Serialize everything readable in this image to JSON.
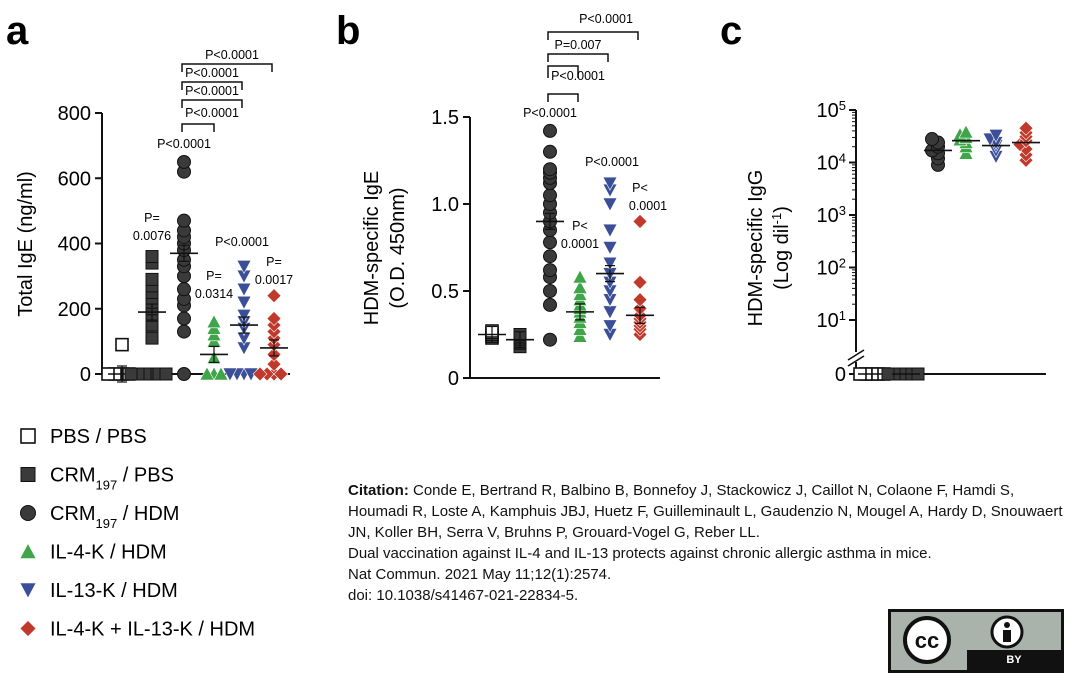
{
  "chart_data": [
    {
      "type": "scatter",
      "panel": "a",
      "ylabel": "Total IgE (ng/ml)",
      "ylim": [
        0,
        800
      ],
      "yticks": [
        0,
        200,
        400,
        600,
        800
      ],
      "groups": [
        {
          "name": "PBS / PBS",
          "mean": 0,
          "values": [
            0,
            0,
            0,
            0,
            90
          ]
        },
        {
          "name": "CRM197 / PBS",
          "mean": 190,
          "values": [
            0,
            0,
            0,
            0,
            0,
            0,
            110,
            150,
            180,
            200,
            220,
            250,
            270,
            290,
            340,
            360
          ]
        },
        {
          "name": "CRM197 / HDM",
          "mean": 370,
          "values": [
            0,
            130,
            170,
            210,
            230,
            260,
            300,
            330,
            350,
            380,
            400,
            420,
            440,
            470,
            620,
            650
          ]
        },
        {
          "name": "IL-4-K / HDM",
          "mean": 60,
          "values": [
            0,
            0,
            0,
            50,
            100,
            120,
            140,
            160
          ]
        },
        {
          "name": "IL-13-K / HDM",
          "mean": 150,
          "values": [
            0,
            0,
            0,
            0,
            80,
            110,
            140,
            160,
            180,
            220,
            260,
            300,
            330
          ]
        },
        {
          "name": "IL-4-K + IL-13-K / HDM",
          "mean": 80,
          "values": [
            0,
            0,
            0,
            0,
            30,
            60,
            90,
            110,
            130,
            150,
            170,
            240
          ]
        }
      ],
      "annotations": [
        {
          "text": "P=",
          "text2": "0.0076"
        },
        {
          "text": "P<0.0001"
        },
        {
          "text": "P=",
          "text2": "0.0314"
        },
        {
          "text": "P<0.0001"
        },
        {
          "text": "P=",
          "text2": "0.0017"
        }
      ],
      "brackets": [
        "P<0.0001",
        "P<0.0001",
        "P<0.0001",
        "P<0.0001"
      ]
    },
    {
      "type": "scatter",
      "panel": "b",
      "ylabel": "HDM-specific IgE",
      "ylabel2": "(O.D. 450nm)",
      "ylim": [
        0,
        1.5
      ],
      "yticks": [
        "0",
        "0.5",
        "1.0",
        "1.5"
      ],
      "groups": [
        {
          "name": "PBS / PBS",
          "mean": 0.25,
          "values": [
            0.23,
            0.24,
            0.25,
            0.26,
            0.27
          ]
        },
        {
          "name": "CRM197 / PBS",
          "mean": 0.22,
          "values": [
            0.18,
            0.2,
            0.21,
            0.22,
            0.23,
            0.24,
            0.25
          ]
        },
        {
          "name": "CRM197 / HDM",
          "mean": 0.9,
          "values": [
            0.22,
            0.42,
            0.5,
            0.58,
            0.62,
            0.7,
            0.78,
            0.85,
            0.9,
            0.95,
            1.0,
            1.05,
            1.12,
            1.15,
            1.18,
            1.2,
            1.3,
            1.42
          ]
        },
        {
          "name": "IL-4-K / HDM",
          "mean": 0.38,
          "values": [
            0.24,
            0.28,
            0.32,
            0.35,
            0.38,
            0.4,
            0.42,
            0.45,
            0.48,
            0.52,
            0.58
          ]
        },
        {
          "name": "IL-13-K / HDM",
          "mean": 0.6,
          "values": [
            0.25,
            0.3,
            0.38,
            0.45,
            0.5,
            0.55,
            0.6,
            0.66,
            0.75,
            0.85,
            1.0,
            1.08,
            1.12
          ]
        },
        {
          "name": "IL-4-K + IL-13-K / HDM",
          "mean": 0.36,
          "values": [
            0.25,
            0.28,
            0.3,
            0.32,
            0.34,
            0.36,
            0.4,
            0.45,
            0.55,
            0.9
          ]
        }
      ],
      "annotations": [
        {
          "text": "P<0.0001"
        },
        {
          "text": "P<",
          "text2": "0.0001"
        },
        {
          "text": "P<0.0001"
        },
        {
          "text": "P<",
          "text2": "0.0001"
        }
      ],
      "brackets": [
        "P<0.0001",
        "P=0.007",
        "P<0.0001"
      ]
    },
    {
      "type": "scatter",
      "panel": "c",
      "ylabel": "HDM-specific IgG",
      "ylabel2": "(Log dil",
      "ylabel2_sup": "-1",
      "ylabel2_end": ")",
      "yscale": "log",
      "ylim": [
        10,
        100000
      ],
      "yticks": [
        {
          "base": "10",
          "exp": "5"
        },
        {
          "base": "10",
          "exp": "4"
        },
        {
          "base": "10",
          "exp": "3"
        },
        {
          "base": "10",
          "exp": "2"
        },
        {
          "base": "10",
          "exp": "1"
        },
        {
          "base": "0",
          "exp": ""
        }
      ],
      "groups": [
        {
          "name": "PBS / PBS",
          "mean": 0,
          "values": [
            0,
            0,
            0,
            0,
            0
          ]
        },
        {
          "name": "CRM197 / PBS",
          "mean": 0,
          "values": [
            0,
            0,
            0,
            0,
            0,
            0
          ]
        },
        {
          "name": "CRM197 / HDM",
          "mean": 17000,
          "values": [
            9000,
            12000,
            15000,
            17000,
            20000,
            24000,
            28000
          ]
        },
        {
          "name": "IL-4-K / HDM",
          "mean": 26000,
          "values": [
            15000,
            20000,
            24000,
            27000,
            30000,
            34000,
            38000
          ]
        },
        {
          "name": "IL-13-K / HDM",
          "mean": 21000,
          "values": [
            13000,
            17000,
            21000,
            24000,
            28000,
            33000
          ]
        },
        {
          "name": "IL-4-K + IL-13-K / HDM",
          "mean": 24000,
          "values": [
            11000,
            14000,
            18000,
            22000,
            26000,
            31000,
            37000,
            45000
          ]
        }
      ]
    }
  ],
  "legend": [
    {
      "label_pre": "PBS / PBS",
      "sub": "",
      "label_post": "",
      "marker": "square-open",
      "color": "#111111"
    },
    {
      "label_pre": "CRM",
      "sub": "197",
      "label_post": " / PBS",
      "marker": "square",
      "color": "#3a3a3a"
    },
    {
      "label_pre": "CRM",
      "sub": "197",
      "label_post": " / HDM",
      "marker": "circle",
      "color": "#3a3a3a"
    },
    {
      "label_pre": "IL-4-K / HDM",
      "sub": "",
      "label_post": "",
      "marker": "triangle-up",
      "color": "#3fa548"
    },
    {
      "label_pre": "IL-13-K / HDM",
      "sub": "",
      "label_post": "",
      "marker": "triangle-down",
      "color": "#3b4f99"
    },
    {
      "label_pre": "IL-4-K + IL-13-K / HDM",
      "sub": "",
      "label_post": "",
      "marker": "diamond",
      "color": "#c0392b"
    }
  ],
  "citation": {
    "label": "Citation:",
    "authors": " Conde E, Bertrand R, Balbino B, Bonnefoy J, Stackowicz J, Caillot N, Colaone F, Hamdi S, Houmadi R, Loste A, Kamphuis JBJ, Huetz F, Guilleminault L, Gaudenzio N, Mougel A, Hardy D, Snouwaert JN, Koller BH, Serra V, Bruhns P, Grouard-Vogel G, Reber LL.",
    "title": "Dual vaccination against IL-4 and IL-13 protects against chronic allergic asthma in mice.",
    "journal": "Nat Commun. 2021 May 11;12(1):2574.",
    "doi": "doi: 10.1038/s41467-021-22834-5."
  },
  "license": {
    "cc": "cc",
    "by": "BY"
  },
  "colors": {
    "pbs": "#111111",
    "crm": "#3a3a3a",
    "il4": "#3fa548",
    "il13": "#3b4f99",
    "combo": "#c0392b"
  }
}
